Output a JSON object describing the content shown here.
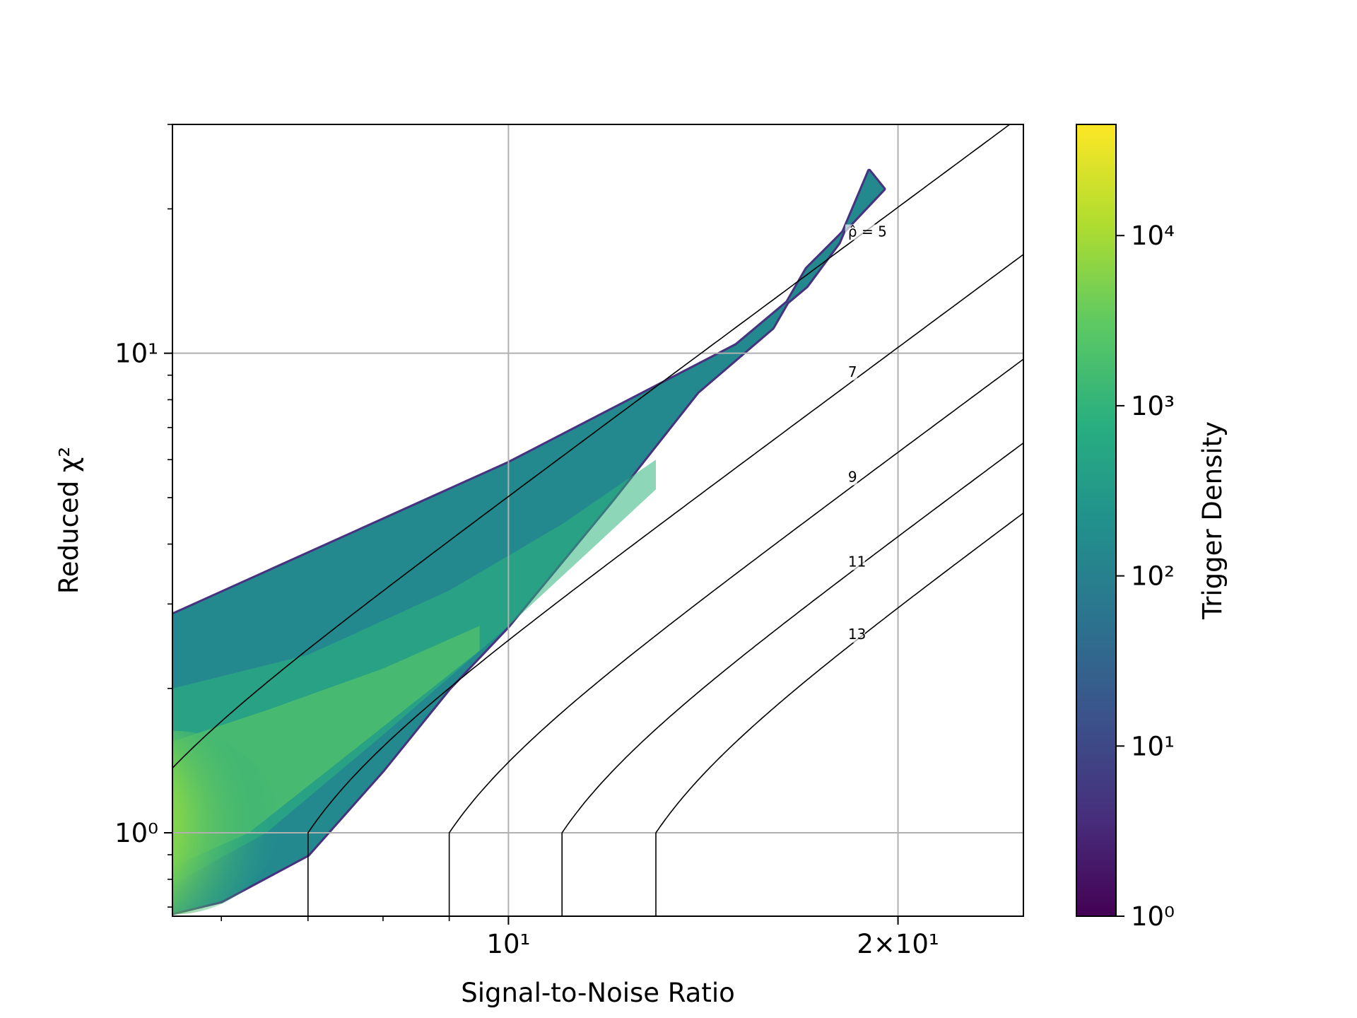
{
  "chart_data": {
    "type": "heatmap",
    "title": "",
    "xlabel": "Signal-to-Noise Ratio",
    "ylabel": "Reduced χ²",
    "x_scale": "log",
    "y_scale": "log",
    "xlim": [
      5.5,
      25.0
    ],
    "ylim": [
      0.67,
      30.0
    ],
    "x_ticks": [
      {
        "value": 10,
        "label": "10¹"
      },
      {
        "value": 20,
        "label": "2×10¹"
      }
    ],
    "x_minor_ticks": [
      6,
      7,
      8,
      9
    ],
    "y_ticks": [
      {
        "value": 1,
        "label": "10⁰"
      },
      {
        "value": 10,
        "label": "10¹"
      }
    ],
    "grid": true,
    "colorbar": {
      "label": "Trigger Density",
      "scale": "log",
      "range": [
        1,
        45000
      ],
      "colormap": "viridis",
      "ticks": [
        {
          "value": 1,
          "label": "10⁰"
        },
        {
          "value": 10,
          "label": "10¹"
        },
        {
          "value": 100,
          "label": "10²"
        },
        {
          "value": 1000,
          "label": "10³"
        },
        {
          "value": 10000,
          "label": "10⁴"
        }
      ]
    },
    "density": {
      "description_of_band": "trigger density along the noise locus",
      "upper_edge": [
        [
          5.5,
          2.85
        ],
        [
          10.0,
          5.9
        ],
        [
          15.0,
          10.4
        ],
        [
          17.0,
          13.8
        ],
        [
          18.0,
          17.0
        ],
        [
          19.0,
          24.0
        ]
      ],
      "lower_edge": [
        [
          5.5,
          0.68
        ],
        [
          6.0,
          0.72
        ],
        [
          7.0,
          0.9
        ],
        [
          8.0,
          1.35
        ],
        [
          9.0,
          2.0
        ],
        [
          10.0,
          2.7
        ],
        [
          12.0,
          4.9
        ],
        [
          14.0,
          8.3
        ],
        [
          16.0,
          11.3
        ],
        [
          17.0,
          15.0
        ],
        [
          18.0,
          17.5
        ],
        [
          19.5,
          22.0
        ]
      ],
      "peak": {
        "x": 5.5,
        "y": 1.05,
        "value": 45000
      }
    },
    "contours": {
      "label_prefix": "ρ̂ = ",
      "levels": [
        {
          "value": 5,
          "label": "ρ̂ = 5"
        },
        {
          "value": 7,
          "label": "7"
        },
        {
          "value": 9,
          "label": "9"
        },
        {
          "value": 11,
          "label": "11"
        },
        {
          "value": 13,
          "label": "13"
        }
      ],
      "label_x": 18.3
    }
  }
}
